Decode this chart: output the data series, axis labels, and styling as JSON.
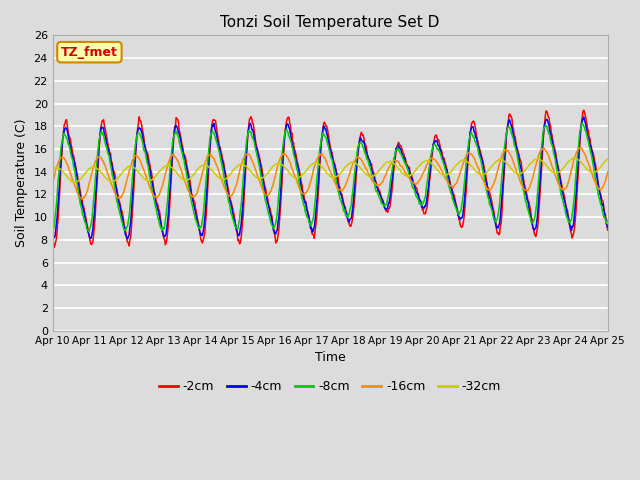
{
  "title": "Tonzi Soil Temperature Set D",
  "xlabel": "Time",
  "ylabel": "Soil Temperature (C)",
  "annotation": "TZ_fmet",
  "ylim": [
    0,
    26
  ],
  "yticks": [
    0,
    2,
    4,
    6,
    8,
    10,
    12,
    14,
    16,
    18,
    20,
    22,
    24,
    26
  ],
  "xtick_labels": [
    "Apr 10",
    "Apr 11",
    "Apr 12",
    "Apr 13",
    "Apr 14",
    "Apr 15",
    "Apr 16",
    "Apr 17",
    "Apr 18",
    "Apr 19",
    "Apr 20",
    "Apr 21",
    "Apr 22",
    "Apr 23",
    "Apr 24",
    "Apr 25"
  ],
  "series_colors": [
    "#ff0000",
    "#0000ff",
    "#00cc00",
    "#ff8800",
    "#cccc00"
  ],
  "series_labels": [
    "-2cm",
    "-4cm",
    "-8cm",
    "-16cm",
    "-32cm"
  ],
  "plot_bg_color": "#dcdcdc",
  "grid_color": "#ffffff",
  "fig_bg_color": "#dcdcdc",
  "n_points": 720,
  "days": 15
}
